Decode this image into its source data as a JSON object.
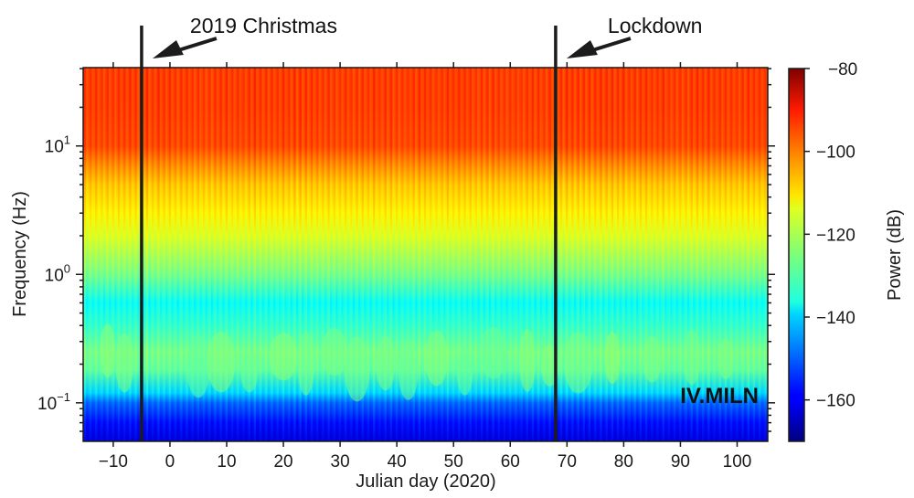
{
  "chart_data": {
    "type": "heatmap",
    "title": "",
    "station_label": "IV.MILN",
    "xlabel": "Julian day (2020)",
    "ylabel": "Frequency (Hz)",
    "xlim": [
      -15.3,
      105.4
    ],
    "ylim_log10": [
      -1.3,
      1.61
    ],
    "yscale": "log",
    "x_ticks": [
      -10,
      0,
      10,
      20,
      30,
      40,
      50,
      60,
      70,
      80,
      90,
      100
    ],
    "x_tick_labels": [
      "−10",
      "0",
      "10",
      "20",
      "30",
      "40",
      "50",
      "60",
      "70",
      "80",
      "90",
      "100"
    ],
    "y_ticks": [
      {
        "value": 10,
        "base": "10",
        "exp": "1"
      },
      {
        "value": 1,
        "base": "10",
        "exp": "0"
      },
      {
        "value": 0.1,
        "base": "10",
        "exp": "−1"
      }
    ],
    "colorbar": {
      "label": "Power (dB)",
      "range": [
        -170,
        -80
      ],
      "ticks": [
        -80,
        -100,
        -120,
        -140,
        -160
      ],
      "tick_labels": [
        "−80",
        "−100",
        "−120",
        "−140",
        "−160"
      ],
      "colormap": "jet"
    },
    "power_profile": {
      "description": "Approximate median power (dB) vs frequency, roughly constant over time with daily striations",
      "frequency_hz": [
        40,
        20,
        10,
        7,
        5,
        3,
        2,
        1,
        0.6,
        0.4,
        0.25,
        0.18,
        0.12,
        0.1,
        0.07,
        0.05
      ],
      "power_db": [
        -97,
        -97,
        -98,
        -104,
        -109,
        -113,
        -117,
        -126,
        -136,
        -132,
        -126,
        -128,
        -140,
        -150,
        -158,
        -162
      ]
    },
    "events": [
      {
        "label": "2019 Christmas",
        "day": -5
      },
      {
        "label": "Lockdown",
        "day": 68
      }
    ]
  }
}
